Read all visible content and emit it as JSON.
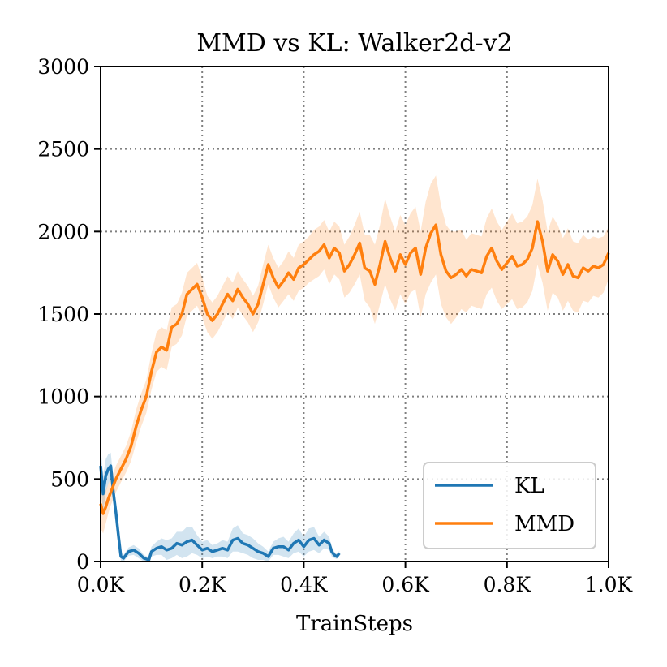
{
  "chart_data": {
    "type": "line",
    "title": "MMD vs KL: Walker2d-v2",
    "xlabel": "TrainSteps",
    "ylabel": "",
    "xlim": [
      0,
      1000
    ],
    "ylim": [
      0,
      3000
    ],
    "xticks": [
      0,
      200,
      400,
      600,
      800,
      1000
    ],
    "xtick_labels": [
      "0.0K",
      "0.2K",
      "0.4K",
      "0.6K",
      "0.8K",
      "1.0K"
    ],
    "yticks": [
      0,
      500,
      1000,
      1500,
      2000,
      2500,
      3000
    ],
    "ytick_labels": [
      "0",
      "500",
      "1000",
      "1500",
      "2000",
      "2500",
      "3000"
    ],
    "grid": true,
    "legend_position": "bottom-right",
    "series": [
      {
        "name": "KL",
        "color": "#1f77b4",
        "x": [
          0,
          5,
          10,
          15,
          20,
          25,
          30,
          35,
          40,
          45,
          55,
          65,
          75,
          85,
          95,
          100,
          110,
          120,
          130,
          140,
          150,
          160,
          170,
          180,
          190,
          200,
          210,
          220,
          230,
          240,
          250,
          260,
          270,
          280,
          290,
          300,
          310,
          320,
          330,
          340,
          350,
          360,
          370,
          380,
          390,
          400,
          410,
          420,
          430,
          440,
          450,
          455,
          460,
          465,
          470
        ],
        "values": [
          580,
          410,
          520,
          560,
          580,
          420,
          300,
          160,
          30,
          20,
          60,
          70,
          50,
          20,
          10,
          60,
          80,
          90,
          70,
          80,
          110,
          100,
          120,
          130,
          100,
          70,
          80,
          60,
          70,
          80,
          70,
          130,
          140,
          110,
          100,
          80,
          60,
          50,
          30,
          80,
          90,
          90,
          70,
          110,
          130,
          90,
          130,
          140,
          100,
          130,
          110,
          60,
          40,
          30,
          50
        ],
        "band_width": [
          120,
          110,
          100,
          90,
          80,
          80,
          60,
          40,
          25,
          20,
          25,
          30,
          30,
          20,
          15,
          30,
          40,
          50,
          60,
          60,
          70,
          80,
          90,
          80,
          60,
          50,
          50,
          40,
          40,
          50,
          50,
          70,
          80,
          60,
          60,
          60,
          50,
          40,
          30,
          40,
          50,
          60,
          50,
          60,
          70,
          60,
          70,
          70,
          50,
          50,
          40,
          30,
          20,
          15,
          15
        ]
      },
      {
        "name": "MMD",
        "color": "#ff7f0e",
        "x": [
          0,
          5,
          10,
          15,
          20,
          30,
          40,
          50,
          60,
          70,
          80,
          90,
          100,
          110,
          120,
          130,
          140,
          150,
          160,
          170,
          180,
          190,
          200,
          210,
          220,
          230,
          240,
          250,
          260,
          270,
          280,
          290,
          300,
          310,
          320,
          330,
          340,
          350,
          360,
          370,
          380,
          390,
          400,
          410,
          420,
          430,
          440,
          450,
          460,
          470,
          480,
          490,
          500,
          510,
          520,
          530,
          540,
          550,
          560,
          570,
          580,
          590,
          600,
          610,
          620,
          630,
          640,
          650,
          660,
          670,
          680,
          690,
          700,
          710,
          720,
          730,
          740,
          750,
          760,
          770,
          780,
          790,
          800,
          810,
          820,
          830,
          840,
          850,
          860,
          870,
          880,
          890,
          900,
          910,
          920,
          930,
          940,
          950,
          960,
          970,
          980,
          990,
          1000
        ],
        "values": [
          350,
          290,
          330,
          380,
          420,
          500,
          560,
          620,
          700,
          820,
          920,
          1000,
          1150,
          1270,
          1300,
          1280,
          1420,
          1440,
          1500,
          1620,
          1650,
          1680,
          1600,
          1500,
          1460,
          1500,
          1560,
          1620,
          1580,
          1650,
          1600,
          1560,
          1500,
          1560,
          1680,
          1800,
          1720,
          1660,
          1700,
          1750,
          1710,
          1780,
          1800,
          1830,
          1860,
          1880,
          1920,
          1840,
          1900,
          1870,
          1760,
          1800,
          1860,
          1930,
          1780,
          1760,
          1680,
          1800,
          1940,
          1840,
          1760,
          1860,
          1800,
          1870,
          1900,
          1740,
          1900,
          1990,
          2040,
          1860,
          1760,
          1720,
          1740,
          1770,
          1730,
          1770,
          1760,
          1750,
          1850,
          1900,
          1820,
          1770,
          1810,
          1850,
          1790,
          1800,
          1830,
          1900,
          2060,
          1940,
          1760,
          1860,
          1820,
          1740,
          1800,
          1730,
          1720,
          1780,
          1760,
          1790,
          1780,
          1800,
          1870
        ],
        "band_width": [
          150,
          120,
          100,
          90,
          80,
          80,
          80,
          80,
          90,
          100,
          100,
          100,
          110,
          120,
          120,
          120,
          120,
          120,
          130,
          130,
          130,
          130,
          120,
          110,
          110,
          110,
          110,
          110,
          110,
          110,
          110,
          110,
          110,
          110,
          120,
          120,
          120,
          120,
          120,
          130,
          130,
          140,
          140,
          140,
          150,
          150,
          150,
          160,
          160,
          160,
          160,
          170,
          180,
          190,
          200,
          220,
          240,
          240,
          260,
          250,
          240,
          240,
          240,
          240,
          250,
          260,
          280,
          300,
          300,
          300,
          280,
          280,
          260,
          240,
          220,
          220,
          220,
          220,
          230,
          240,
          240,
          240,
          250,
          260,
          260,
          260,
          260,
          260,
          260,
          250,
          240,
          230,
          220,
          220,
          220,
          210,
          210,
          200,
          190,
          180,
          180,
          170,
          160
        ]
      }
    ]
  }
}
